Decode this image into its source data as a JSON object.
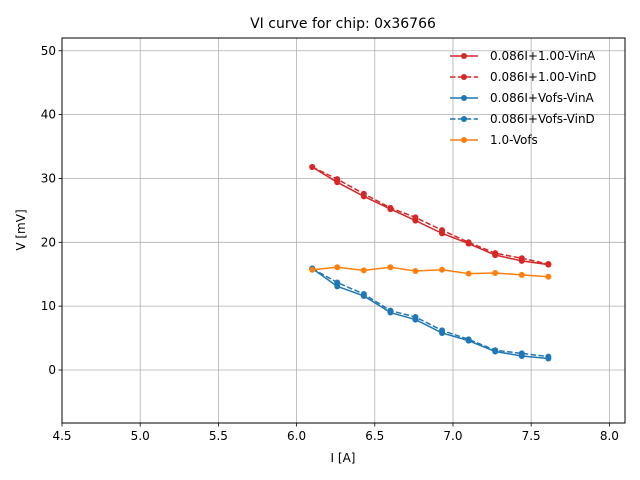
{
  "chart_data": {
    "type": "line",
    "title": "VI curve for chip: 0x36766",
    "xlabel": "I [A]",
    "ylabel": "V [mV]",
    "xlim": [
      4.5,
      8.1
    ],
    "ylim": [
      -8.3,
      52
    ],
    "xticks": [
      "4.5",
      "5.0",
      "5.5",
      "6.0",
      "6.5",
      "7.0",
      "7.5",
      "8.0"
    ],
    "yticks": [
      "0",
      "10",
      "20",
      "30",
      "40",
      "50"
    ],
    "grid": true,
    "legend_position": "top-right",
    "x": [
      6.1,
      6.26,
      6.43,
      6.6,
      6.76,
      6.93,
      7.1,
      7.27,
      7.44,
      7.61
    ],
    "series": [
      {
        "name": "0.086I+1.00-VinA",
        "color": "#d62728",
        "dashed": false,
        "values": [
          31.8,
          29.4,
          27.2,
          25.2,
          23.4,
          21.4,
          19.8,
          18.0,
          17.1,
          16.5
        ]
      },
      {
        "name": "0.086I+1.00-VinD",
        "color": "#d62728",
        "dashed": true,
        "values": [
          31.8,
          29.9,
          27.6,
          25.4,
          23.9,
          21.9,
          20.0,
          18.3,
          17.5,
          16.6
        ]
      },
      {
        "name": "0.086I+Vofs-VinA",
        "color": "#1f77b4",
        "dashed": false,
        "values": [
          15.9,
          13.1,
          11.6,
          9.0,
          7.9,
          5.8,
          4.6,
          2.9,
          2.2,
          1.8
        ]
      },
      {
        "name": "0.086I+Vofs-VinD",
        "color": "#1f77b4",
        "dashed": true,
        "values": [
          15.9,
          13.7,
          11.9,
          9.3,
          8.3,
          6.2,
          4.8,
          3.1,
          2.6,
          2.1
        ]
      },
      {
        "name": "1.0-Vofs",
        "color": "#ff7f0e",
        "dashed": false,
        "values": [
          15.7,
          16.1,
          15.6,
          16.1,
          15.5,
          15.7,
          15.1,
          15.2,
          14.9,
          14.6
        ]
      }
    ]
  }
}
